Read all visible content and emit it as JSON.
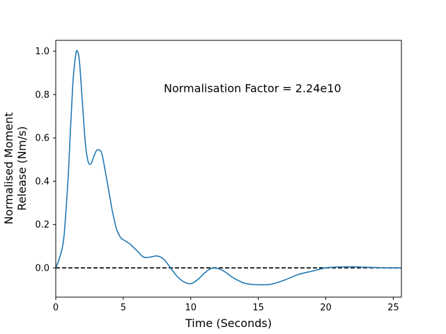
{
  "chart_data": {
    "type": "line",
    "title": "",
    "xlabel": "Time (Seconds)",
    "ylabel_lines": [
      "Normalised Moment",
      "Release (Nm/s)"
    ],
    "xlim": [
      0,
      25.6
    ],
    "ylim": [
      -0.135,
      1.05
    ],
    "x_ticks": [
      0,
      5,
      10,
      15,
      20,
      25
    ],
    "y_ticks": [
      0.0,
      0.2,
      0.4,
      0.6,
      0.8,
      1.0
    ],
    "x_tick_labels": [
      "0",
      "5",
      "10",
      "15",
      "20",
      "25"
    ],
    "y_tick_labels": [
      "0.0",
      "0.2",
      "0.4",
      "0.6",
      "0.8",
      "1.0"
    ],
    "grid": false,
    "annotation": {
      "text": "Normalisation Factor = 2.24e10",
      "x": 8.0,
      "y": 0.81
    },
    "reference_line": {
      "y": 0.0,
      "style": "dashed",
      "color": "#000000"
    },
    "series": [
      {
        "color": "#1f77b4",
        "x": [
          0.0,
          0.3,
          0.6,
          0.9,
          1.1,
          1.3,
          1.5,
          1.6,
          1.7,
          1.8,
          2.0,
          2.2,
          2.4,
          2.6,
          2.8,
          3.0,
          3.2,
          3.4,
          3.6,
          3.8,
          4.0,
          4.2,
          4.5,
          4.8,
          5.0,
          5.5,
          6.0,
          6.5,
          7.0,
          7.5,
          8.0,
          8.5,
          9.0,
          9.5,
          10.0,
          10.5,
          11.0,
          11.5,
          12.0,
          12.5,
          13.0,
          13.5,
          14.0,
          14.5,
          15.0,
          15.5,
          16.0,
          17.0,
          18.0,
          19.0,
          20.0,
          21.0,
          22.0,
          23.0,
          24.0,
          25.0,
          25.6
        ],
        "y": [
          0.0,
          0.05,
          0.14,
          0.4,
          0.65,
          0.88,
          0.99,
          1.0,
          0.98,
          0.92,
          0.74,
          0.57,
          0.49,
          0.48,
          0.51,
          0.54,
          0.545,
          0.53,
          0.47,
          0.4,
          0.33,
          0.26,
          0.18,
          0.14,
          0.13,
          0.11,
          0.08,
          0.05,
          0.05,
          0.055,
          0.04,
          0.0,
          -0.04,
          -0.065,
          -0.073,
          -0.055,
          -0.025,
          -0.003,
          -0.003,
          -0.017,
          -0.04,
          -0.058,
          -0.071,
          -0.076,
          -0.078,
          -0.078,
          -0.075,
          -0.055,
          -0.03,
          -0.015,
          0.0,
          0.004,
          0.005,
          0.003,
          0.001,
          0.0,
          0.0
        ]
      }
    ]
  }
}
